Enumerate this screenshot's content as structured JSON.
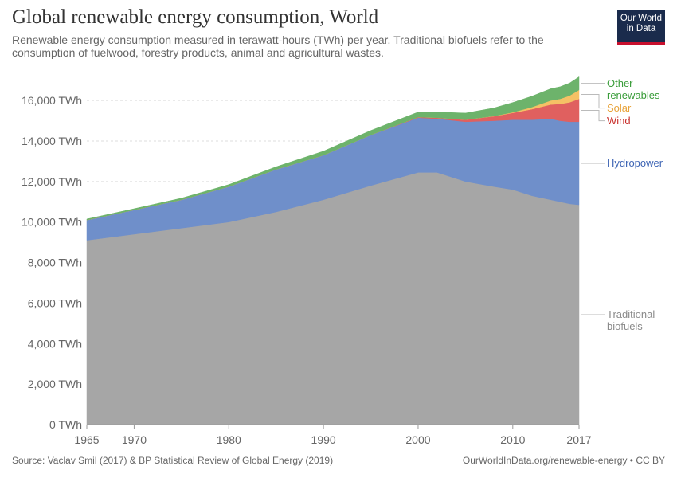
{
  "title": "Global renewable energy consumption, World",
  "subtitle": "Renewable energy consumption measured in terawatt-hours (TWh) per year. Traditional biofuels refer to the consumption of fuelwood, forestry products, animal and agricultural wastes.",
  "logo": [
    "Our World",
    "in Data"
  ],
  "source": "Source: Vaclav Smil (2017) & BP Statistical Review of Global Energy (2019)",
  "url": "OurWorldInData.org/renewable-energy • CC BY",
  "chart_data": {
    "type": "stacked-area",
    "x": [
      1965,
      1970,
      1975,
      1980,
      1985,
      1990,
      1995,
      2000,
      2002,
      2005,
      2008,
      2010,
      2012,
      2014,
      2015,
      2016,
      2017
    ],
    "series": [
      {
        "name": "Traditional biofuels",
        "color": "#a6a6a6",
        "label_color": "#8a8a8a",
        "values": [
          9100,
          9400,
          9700,
          10000,
          10500,
          11100,
          11800,
          12450,
          12450,
          12000,
          11750,
          11600,
          11300,
          11100,
          11000,
          10900,
          10850
        ]
      },
      {
        "name": "Hydropower",
        "color": "#6f8fca",
        "label_color": "#3d64b4",
        "values": [
          1000,
          1200,
          1400,
          1750,
          2100,
          2200,
          2500,
          2700,
          2650,
          2950,
          3250,
          3450,
          3750,
          4000,
          4000,
          4050,
          4100
        ]
      },
      {
        "name": "Wind",
        "color": "#e0605f",
        "label_color": "#c9302c",
        "values": [
          0,
          0,
          0,
          0,
          0,
          0,
          0,
          30,
          50,
          100,
          220,
          340,
          520,
          700,
          830,
          960,
          1130
        ]
      },
      {
        "name": "Solar",
        "color": "#f5c165",
        "label_color": "#e8a33a",
        "values": [
          0,
          0,
          0,
          0,
          0,
          0,
          0,
          0,
          0,
          0,
          12,
          30,
          100,
          200,
          250,
          330,
          440
        ]
      },
      {
        "name": "Other renewables",
        "color": "#6db36b",
        "label_color": "#3a9d3a",
        "values": [
          50,
          60,
          80,
          100,
          130,
          200,
          220,
          250,
          280,
          330,
          400,
          480,
          540,
          580,
          600,
          620,
          650
        ]
      }
    ],
    "xlim": [
      1965,
      2017
    ],
    "xticks": [
      1965,
      1970,
      1980,
      1990,
      2000,
      2010,
      2017
    ],
    "ylim": [
      0,
      17500
    ],
    "yticks": [
      {
        "value": 0,
        "label": "0 TWh"
      },
      {
        "value": 2000,
        "label": "2,000 TWh"
      },
      {
        "value": 4000,
        "label": "4,000 TWh"
      },
      {
        "value": 6000,
        "label": "6,000 TWh"
      },
      {
        "value": 8000,
        "label": "8,000 TWh"
      },
      {
        "value": 10000,
        "label": "10,000 TWh"
      },
      {
        "value": 12000,
        "label": "12,000 TWh"
      },
      {
        "value": 14000,
        "label": "14,000 TWh"
      },
      {
        "value": 16000,
        "label": "16,000 TWh"
      }
    ],
    "grid": true
  }
}
